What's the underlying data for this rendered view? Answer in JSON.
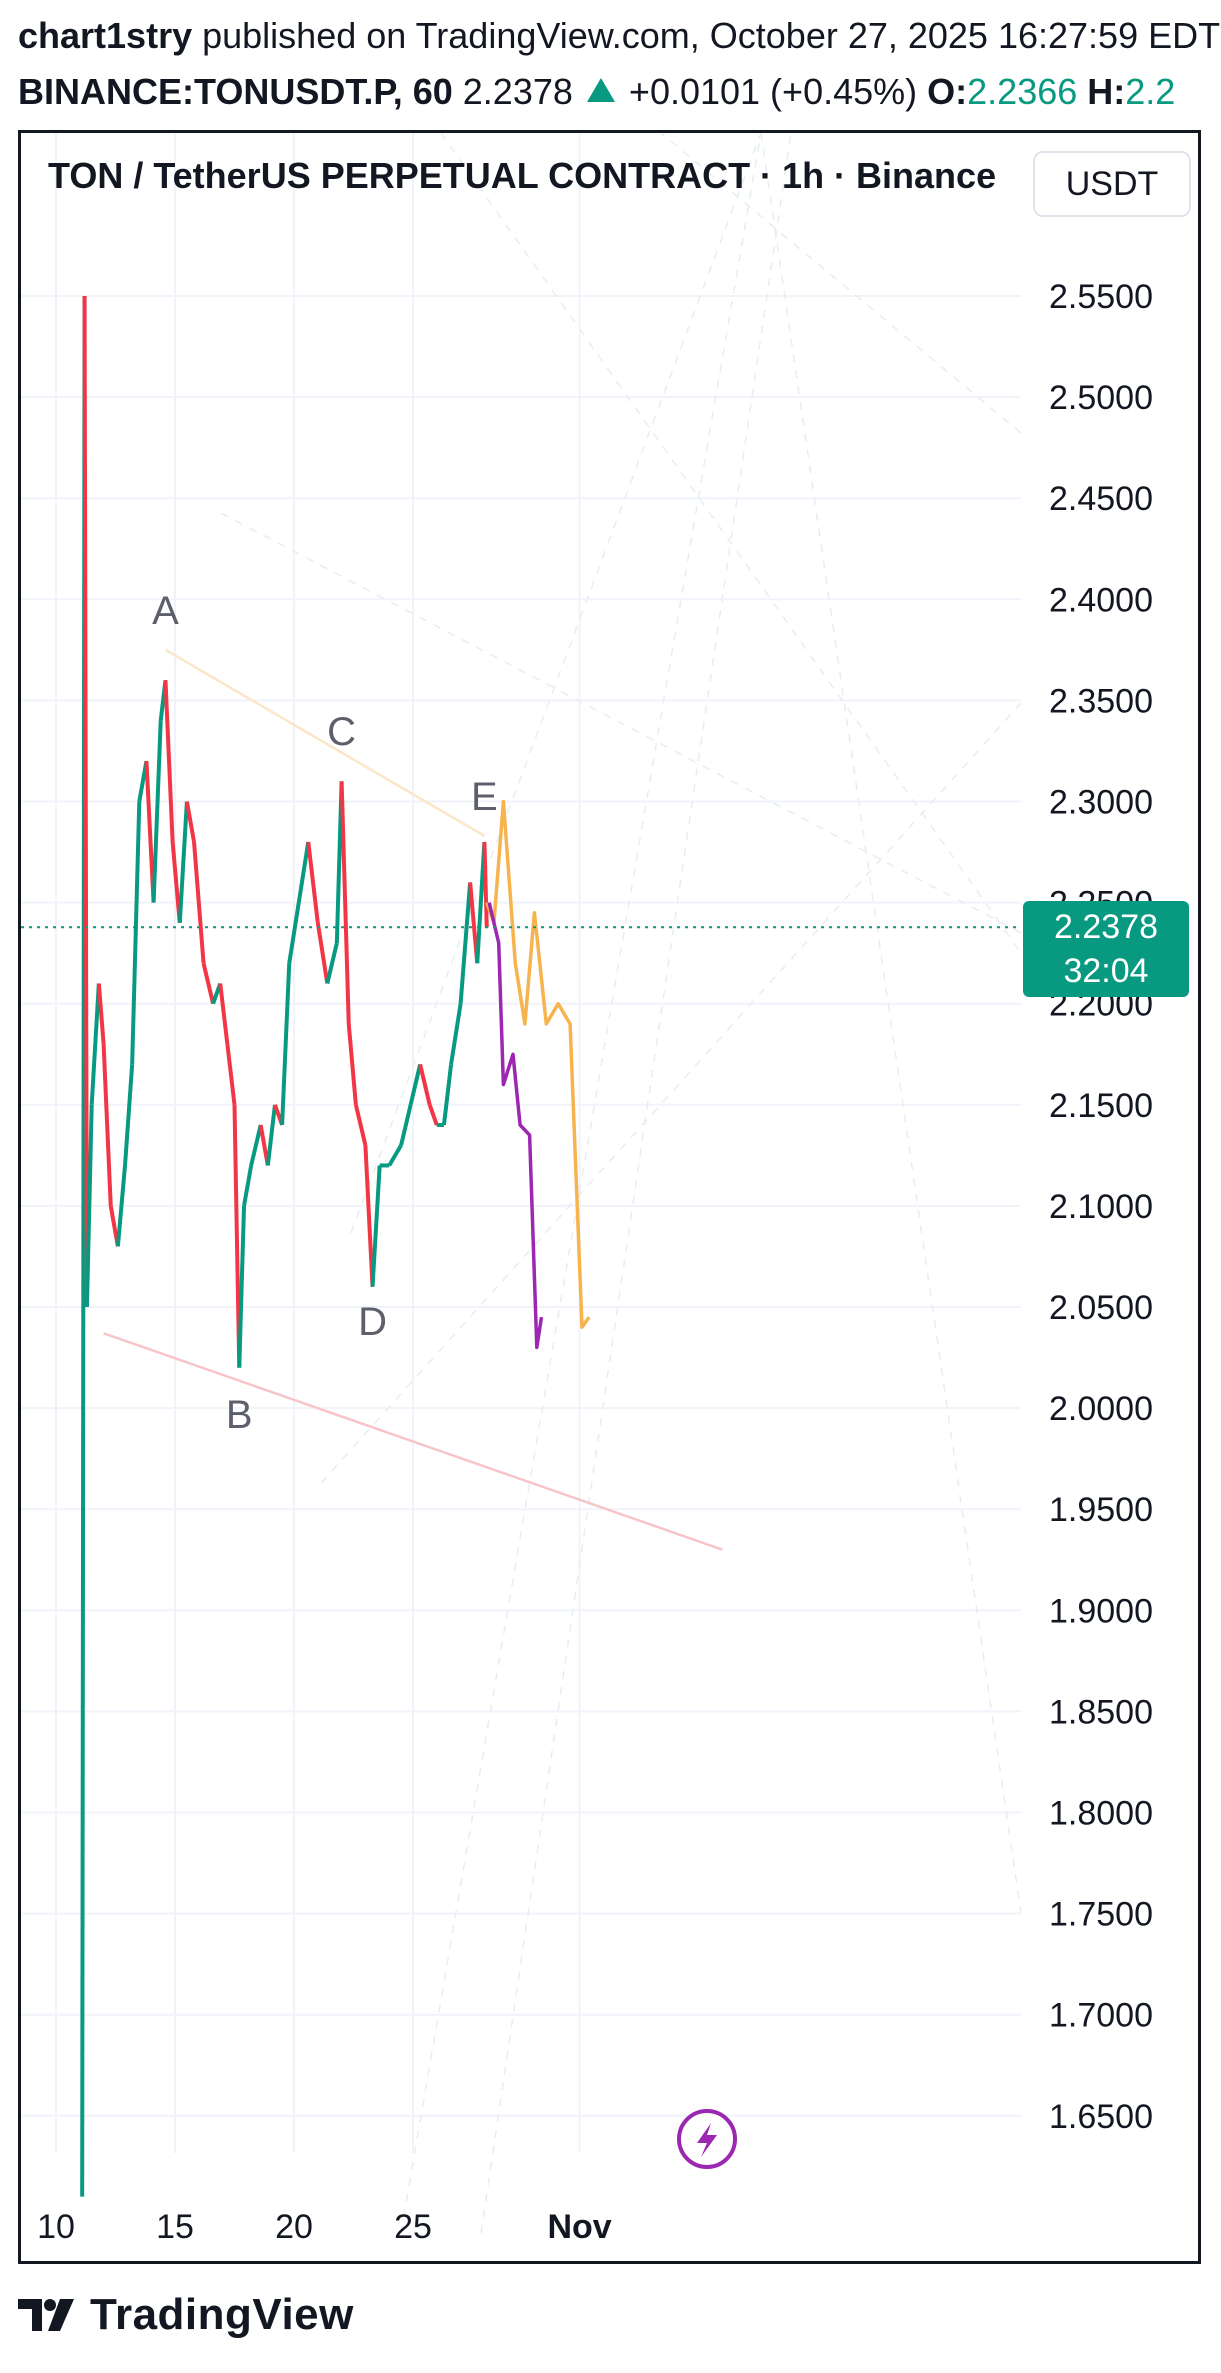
{
  "header": {
    "author": "chart1stry",
    "published_text": "published on TradingView.com, October 27, 2025 16:27:59 EDT",
    "symbol": "BINANCE:TONUSDT.P, 60",
    "last_price": "2.2378",
    "change": "+0.0101 (+0.45%)",
    "open_label": "O:",
    "open_value": "2.2366",
    "high_label": "H:",
    "high_value": "2.2"
  },
  "chart": {
    "title": "TON / TetherUS PERPETUAL CONTRACT · 1h · Binance",
    "unit": "USDT",
    "current_price": "2.2378",
    "countdown": "32:04",
    "colors": {
      "up": "#089981",
      "down": "#f23645",
      "projection_a": "#f7b44e",
      "projection_b": "#9c27b0",
      "support": "#f7c5c9"
    }
  },
  "chart_data": {
    "type": "line",
    "title": "TON / TetherUS PERPETUAL CONTRACT · 1h · Binance",
    "xlabel": "",
    "ylabel": "",
    "ylim": [
      1.61,
      2.59
    ],
    "x_ticks": [
      {
        "label": "10",
        "day": 10
      },
      {
        "label": "15",
        "day": 15
      },
      {
        "label": "20",
        "day": 20
      },
      {
        "label": "25",
        "day": 25
      },
      {
        "label": "Nov",
        "day": 32
      }
    ],
    "y_ticks": [
      "2.5500",
      "2.5000",
      "2.4500",
      "2.4000",
      "2.3500",
      "2.3000",
      "2.2500",
      "2.2000",
      "2.1500",
      "2.1000",
      "2.0500",
      "2.0000",
      "1.9500",
      "1.9000",
      "1.8500",
      "1.8000",
      "1.7500",
      "1.7000",
      "1.6500"
    ],
    "grid": true,
    "current_price": 2.2378,
    "series": [
      {
        "type": "price",
        "points": [
          [
            11.1,
            1.61
          ],
          [
            11.2,
            2.55
          ],
          [
            11.3,
            2.05
          ],
          [
            11.5,
            2.15
          ],
          [
            11.8,
            2.21
          ],
          [
            12.0,
            2.18
          ],
          [
            12.3,
            2.1
          ],
          [
            12.6,
            2.08
          ],
          [
            12.9,
            2.12
          ],
          [
            13.2,
            2.17
          ],
          [
            13.5,
            2.3
          ],
          [
            13.8,
            2.32
          ],
          [
            14.1,
            2.25
          ],
          [
            14.4,
            2.34
          ],
          [
            14.6,
            2.36
          ],
          [
            14.9,
            2.28
          ],
          [
            15.2,
            2.24
          ],
          [
            15.5,
            2.3
          ],
          [
            15.8,
            2.28
          ],
          [
            16.2,
            2.22
          ],
          [
            16.6,
            2.2
          ],
          [
            16.9,
            2.21
          ],
          [
            17.2,
            2.18
          ],
          [
            17.5,
            2.15
          ],
          [
            17.7,
            2.02
          ],
          [
            17.9,
            2.1
          ],
          [
            18.2,
            2.12
          ],
          [
            18.6,
            2.14
          ],
          [
            18.9,
            2.12
          ],
          [
            19.2,
            2.15
          ],
          [
            19.5,
            2.14
          ],
          [
            19.8,
            2.22
          ],
          [
            20.2,
            2.25
          ],
          [
            20.6,
            2.28
          ],
          [
            21.0,
            2.24
          ],
          [
            21.4,
            2.21
          ],
          [
            21.8,
            2.23
          ],
          [
            22.0,
            2.31
          ],
          [
            22.3,
            2.19
          ],
          [
            22.6,
            2.15
          ],
          [
            23.0,
            2.13
          ],
          [
            23.3,
            2.06
          ],
          [
            23.6,
            2.12
          ],
          [
            24.0,
            2.12
          ],
          [
            24.5,
            2.13
          ],
          [
            24.9,
            2.15
          ],
          [
            25.3,
            2.17
          ],
          [
            25.7,
            2.15
          ],
          [
            26.0,
            2.14
          ],
          [
            26.3,
            2.14
          ],
          [
            26.6,
            2.17
          ],
          [
            27.0,
            2.2
          ],
          [
            27.4,
            2.26
          ],
          [
            27.7,
            2.22
          ],
          [
            28.0,
            2.28
          ],
          [
            28.1,
            2.2378
          ]
        ]
      },
      {
        "type": "projection",
        "color": "#f7b44e",
        "points": [
          [
            28.1,
            2.25
          ],
          [
            28.4,
            2.24
          ],
          [
            28.8,
            2.3
          ],
          [
            29.3,
            2.22
          ],
          [
            29.7,
            2.19
          ],
          [
            30.1,
            2.245
          ],
          [
            30.6,
            2.19
          ],
          [
            31.1,
            2.2
          ],
          [
            31.6,
            2.19
          ],
          [
            32.1,
            2.04
          ],
          [
            32.4,
            2.045
          ]
        ]
      },
      {
        "type": "projection",
        "color": "#9c27b0",
        "points": [
          [
            28.2,
            2.25
          ],
          [
            28.6,
            2.23
          ],
          [
            28.8,
            2.16
          ],
          [
            29.2,
            2.175
          ],
          [
            29.5,
            2.14
          ],
          [
            29.9,
            2.135
          ],
          [
            30.2,
            2.03
          ],
          [
            30.4,
            2.045
          ]
        ]
      }
    ],
    "annotations": [
      {
        "label": "A",
        "x": 14.6,
        "y": 2.375
      },
      {
        "label": "B",
        "x": 17.7,
        "y": 2.014
      },
      {
        "label": "C",
        "x": 22.0,
        "y": 2.315
      },
      {
        "label": "D",
        "x": 23.3,
        "y": 2.06
      },
      {
        "label": "E",
        "x": 28.0,
        "y": 2.283
      }
    ],
    "trendlines": [
      {
        "color": "#f7c5c9",
        "from": [
          12.0,
          2.037
        ],
        "to": [
          38.0,
          1.93
        ]
      },
      {
        "color": "#fbe6c8",
        "from": [
          14.6,
          2.375
        ],
        "to": [
          28.0,
          2.283
        ]
      }
    ]
  },
  "footer": {
    "brand": "TradingView",
    "logo_icon": "tradingview-logo-icon"
  }
}
